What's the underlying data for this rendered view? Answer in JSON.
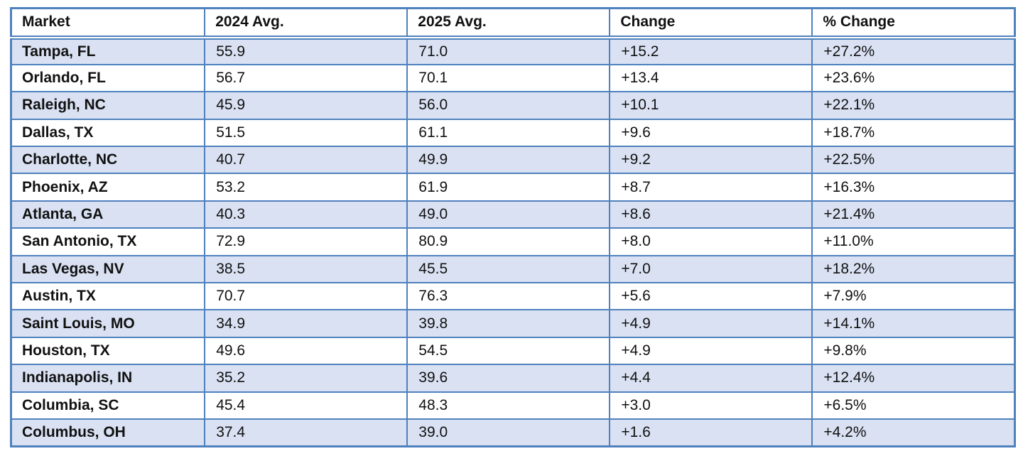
{
  "colors": {
    "border": "#4f81bd",
    "row_band": "#d9e1f2",
    "text": "#111111",
    "background": "#ffffff"
  },
  "chart_data": {
    "type": "table",
    "title": "",
    "columns": [
      "Market",
      "2024 Avg.",
      "2025 Avg.",
      "Change",
      "% Change"
    ],
    "rows": [
      [
        "Tampa, FL",
        "55.9",
        "71.0",
        "+15.2",
        "+27.2%"
      ],
      [
        "Orlando, FL",
        "56.7",
        "70.1",
        "+13.4",
        "+23.6%"
      ],
      [
        "Raleigh, NC",
        "45.9",
        "56.0",
        "+10.1",
        "+22.1%"
      ],
      [
        "Dallas, TX",
        "51.5",
        "61.1",
        "+9.6",
        "+18.7%"
      ],
      [
        "Charlotte, NC",
        "40.7",
        "49.9",
        "+9.2",
        "+22.5%"
      ],
      [
        "Phoenix, AZ",
        "53.2",
        "61.9",
        "+8.7",
        "+16.3%"
      ],
      [
        "Atlanta, GA",
        "40.3",
        "49.0",
        "+8.6",
        "+21.4%"
      ],
      [
        "San Antonio, TX",
        "72.9",
        "80.9",
        "+8.0",
        "+11.0%"
      ],
      [
        "Las Vegas, NV",
        "38.5",
        "45.5",
        "+7.0",
        "+18.2%"
      ],
      [
        "Austin, TX",
        "70.7",
        "76.3",
        "+5.6",
        "+7.9%"
      ],
      [
        "Saint Louis, MO",
        "34.9",
        "39.8",
        "+4.9",
        "+14.1%"
      ],
      [
        "Houston, TX",
        "49.6",
        "54.5",
        "+4.9",
        "+9.8%"
      ],
      [
        "Indianapolis, IN",
        "35.2",
        "39.6",
        "+4.4",
        "+12.4%"
      ],
      [
        "Columbia, SC",
        "45.4",
        "48.3",
        "+3.0",
        "+6.5%"
      ],
      [
        "Columbus, OH",
        "37.4",
        "39.0",
        "+1.6",
        "+4.2%"
      ]
    ],
    "layout_hints": {
      "banding": "alternate rows shaded light blue starting with first data row",
      "header_style": "bold, white background, double rule below",
      "first_column_bold": true,
      "grid": true
    }
  }
}
